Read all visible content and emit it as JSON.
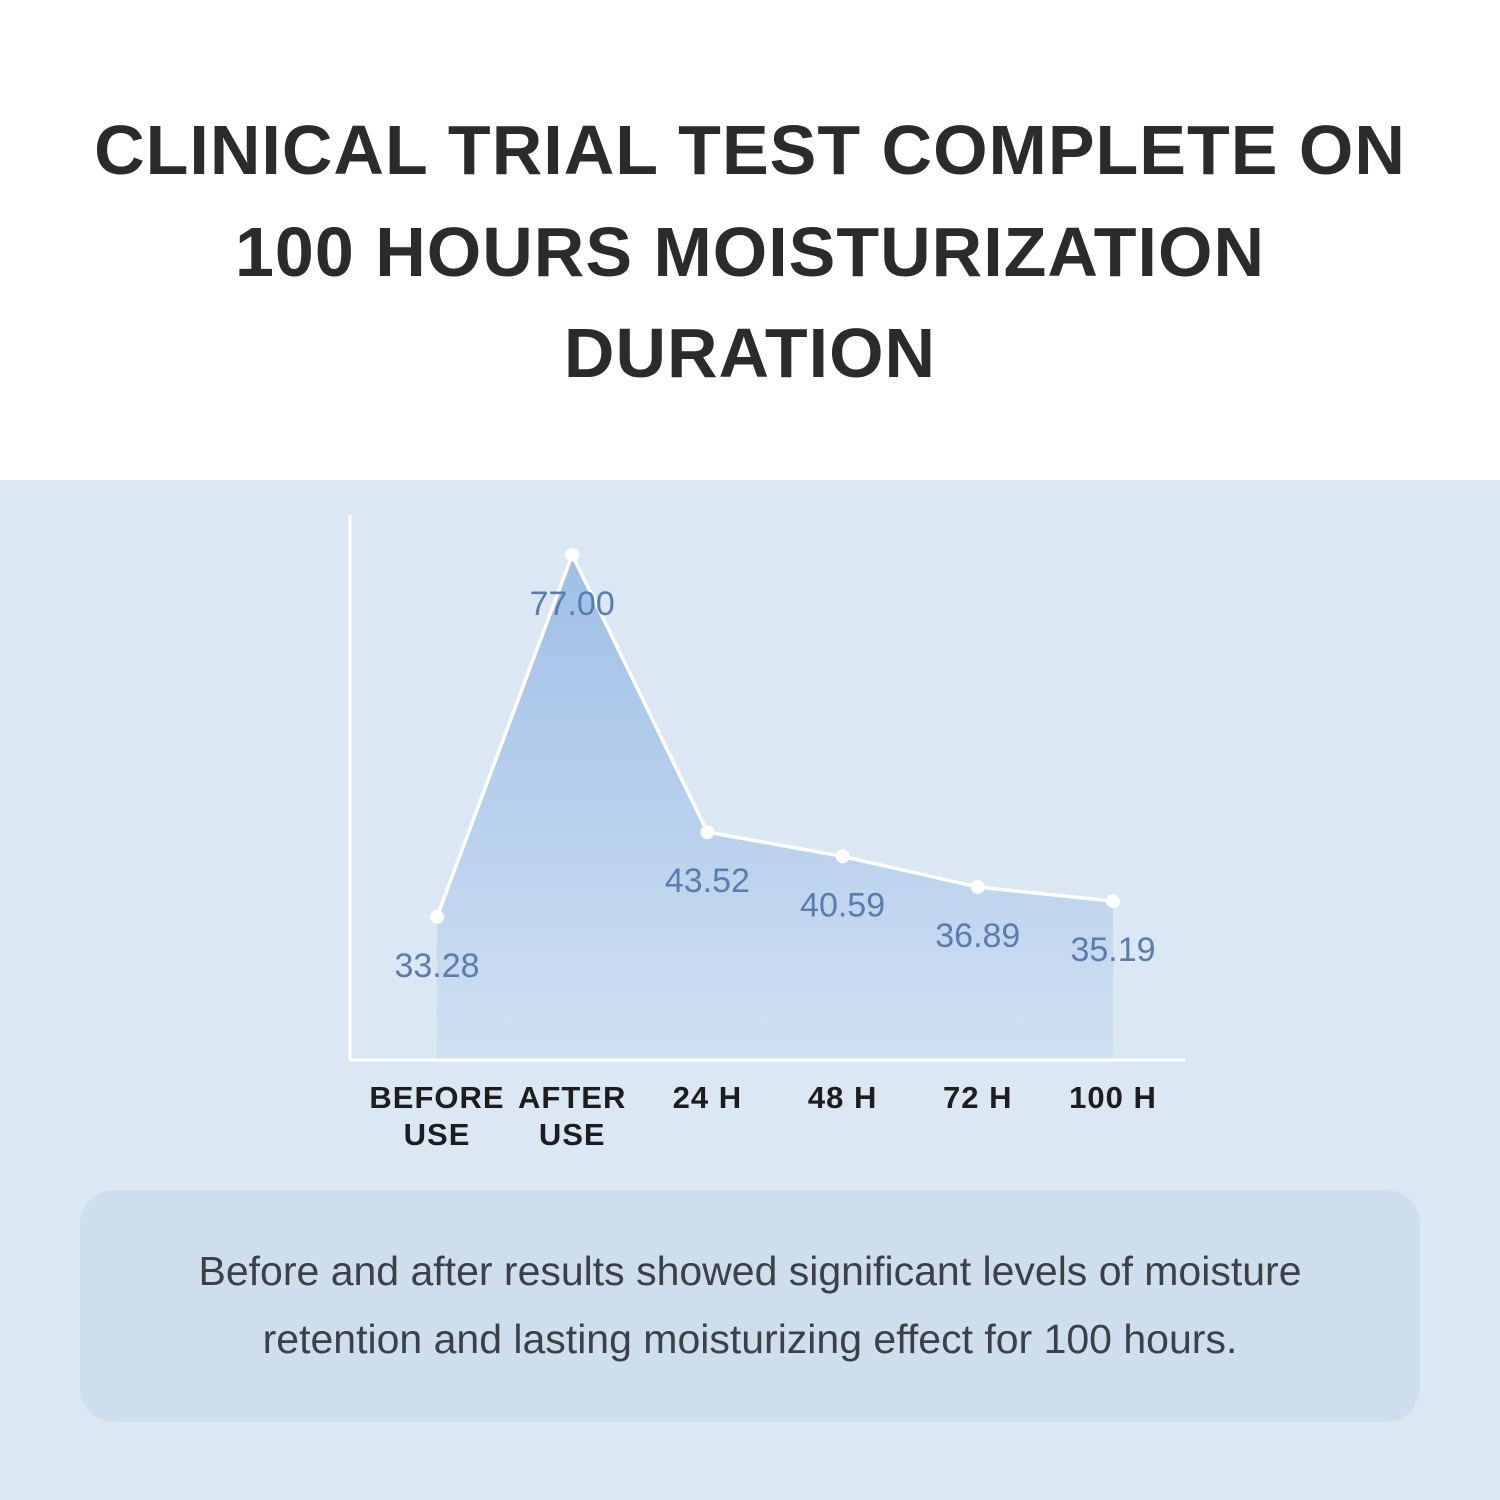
{
  "header": {
    "title": "CLINICAL TRIAL TEST COMPLETE ON 100 HOURS MOISTURIZATION DURATION"
  },
  "chart_data": {
    "type": "area",
    "categories": [
      "BEFORE USE",
      "AFTER USE",
      "24 H",
      "48 H",
      "72 H",
      "100 H"
    ],
    "category_lines": [
      [
        "BEFORE",
        "USE"
      ],
      [
        "AFTER",
        "USE"
      ],
      [
        "24 H"
      ],
      [
        "48 H"
      ],
      [
        "72 H"
      ],
      [
        "100 H"
      ]
    ],
    "values": [
      33.28,
      77.0,
      43.52,
      40.59,
      36.89,
      35.19
    ],
    "value_labels": [
      "33.28",
      "77.00",
      "43.52",
      "40.59",
      "36.89",
      "35.19"
    ],
    "title": "",
    "xlabel": "",
    "ylabel": "",
    "ylim": [
      16,
      80
    ],
    "grid": false,
    "legend": false
  },
  "note": {
    "text": "Before and after results showed significant levels of moisture retention and  lasting moisturizing effect for 100 hours."
  },
  "colors": {
    "title_text": "#2b2b2b",
    "section_bg": "#dbe7f3",
    "card_bg": "#cfdeed",
    "card_text": "#3c4148",
    "axis_line": "#ffffff",
    "trend_line": "#ffffff",
    "point_fill": "#ffffff",
    "area_top": "#9fbfe6",
    "area_bottom": "#d0e0f2",
    "value_label": "#5a7db0",
    "x_label": "#1d1d1f"
  }
}
